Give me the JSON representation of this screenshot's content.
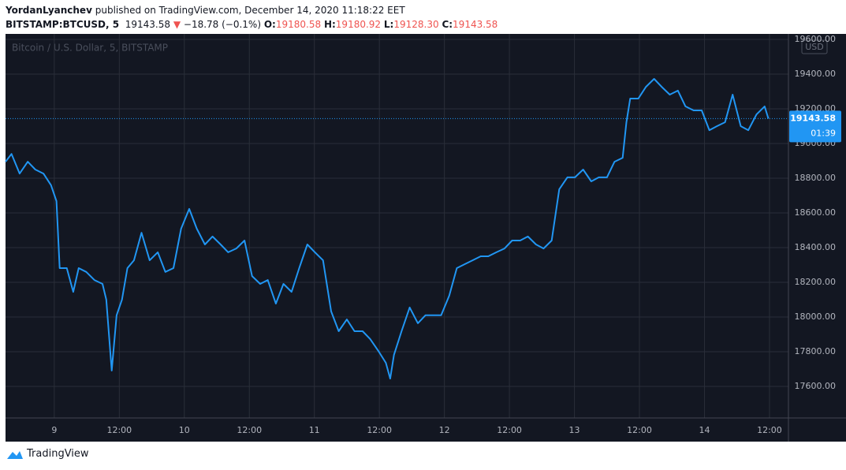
{
  "header": {
    "author": "YordanLyanchev",
    "published": "published on TradingView.com, December 14, 2020 11:18:22 EET",
    "symbol": "BITSTAMP:BTCUSD, 5",
    "last": "19143.58",
    "arrow": "▼",
    "change": "−18.78 (−0.1%)",
    "ohlc": [
      {
        "key": "O:",
        "value": "19180.58"
      },
      {
        "key": "H:",
        "value": "19180.92"
      },
      {
        "key": "L:",
        "value": "19128.30"
      },
      {
        "key": "C:",
        "value": "19143.58"
      }
    ]
  },
  "chart_data": {
    "type": "line",
    "watermark": "Bitcoin / U.S. Dollar, 5, BITSTAMP",
    "currency": "USD",
    "countdown": "01:39",
    "last_price": 19143.58,
    "x": [
      -9.0,
      -7.9,
      -6.4,
      -4.9,
      -3.5,
      -2.0,
      -0.6,
      0.4,
      1.0,
      2.3,
      3.5,
      4.5,
      5.9,
      7.4,
      8.9,
      9.6,
      10.6,
      11.5,
      12.5,
      13.5,
      14.7,
      16.1,
      17.6,
      19.1,
      20.5,
      22.0,
      23.4,
      24.9,
      26.3,
      27.8,
      29.2,
      30.7,
      32.1,
      33.6,
      35.1,
      36.5,
      38.0,
      39.4,
      40.9,
      42.3,
      43.8,
      45.2,
      46.7,
      48.1,
      49.6,
      51.1,
      52.5,
      54.0,
      55.4,
      56.9,
      58.3,
      59.8,
      61.2,
      62.0,
      62.7,
      64.1,
      65.6,
      67.1,
      68.5,
      70.0,
      71.4,
      72.9,
      74.3,
      75.8,
      77.2,
      78.7,
      80.1,
      81.6,
      83.1,
      84.5,
      86.0,
      87.4,
      88.9,
      90.3,
      91.8,
      93.2,
      94.7,
      96.1,
      97.6,
      99.1,
      100.5,
      102.0,
      103.4,
      104.9,
      105.6,
      106.3,
      107.8,
      109.2,
      110.7,
      112.1,
      113.6,
      115.1,
      116.5,
      118.0,
      119.5,
      120.9,
      122.3,
      123.8,
      125.2,
      126.7,
      128.1,
      129.6,
      131.1,
      131.8
    ],
    "series": [
      {
        "name": "BTCUSD",
        "color": "#2196f3",
        "values": [
          18895,
          18940,
          18827,
          18895,
          18850,
          18827,
          18760,
          18668,
          18282,
          18282,
          18145,
          18282,
          18260,
          18213,
          18191,
          18100,
          17691,
          18010,
          18100,
          18282,
          18327,
          18486,
          18327,
          18373,
          18260,
          18282,
          18509,
          18623,
          18509,
          18418,
          18464,
          18418,
          18373,
          18395,
          18441,
          18236,
          18191,
          18213,
          18077,
          18191,
          18145,
          18282,
          18418,
          18373,
          18327,
          18032,
          17918,
          17986,
          17918,
          17918,
          17873,
          17805,
          17736,
          17645,
          17782,
          17918,
          18055,
          17964,
          18010,
          18010,
          18010,
          18123,
          18282,
          18305,
          18327,
          18350,
          18350,
          18373,
          18395,
          18441,
          18441,
          18464,
          18418,
          18395,
          18441,
          18736,
          18805,
          18805,
          18850,
          18782,
          18805,
          18805,
          18895,
          18918,
          19123,
          19259,
          19259,
          19327,
          19373,
          19327,
          19282,
          19305,
          19214,
          19191,
          19191,
          19077,
          19100,
          19123,
          19282,
          19100,
          19077,
          19168,
          19214,
          19143.58
        ]
      }
    ],
    "xlim": [
      -9,
      135.5
    ],
    "xticks": [
      {
        "value": 0,
        "label": "9"
      },
      {
        "value": 12,
        "label": "12:00"
      },
      {
        "value": 24,
        "label": "10"
      },
      {
        "value": 36,
        "label": "12:00"
      },
      {
        "value": 48,
        "label": "11"
      },
      {
        "value": 60,
        "label": "12:00"
      },
      {
        "value": 72,
        "label": "12"
      },
      {
        "value": 84,
        "label": "12:00"
      },
      {
        "value": 96,
        "label": "13"
      },
      {
        "value": 108,
        "label": "12:00"
      },
      {
        "value": 120,
        "label": "14"
      },
      {
        "value": 132,
        "label": "12:00"
      }
    ],
    "ylim": [
      17418,
      19632
    ],
    "yticks": [
      {
        "value": 17600,
        "label": "17600.00"
      },
      {
        "value": 17800,
        "label": "17800.00"
      },
      {
        "value": 18000,
        "label": "18000.00"
      },
      {
        "value": 18200,
        "label": "18200.00"
      },
      {
        "value": 18400,
        "label": "18400.00"
      },
      {
        "value": 18600,
        "label": "18600.00"
      },
      {
        "value": 18800,
        "label": "18800.00"
      },
      {
        "value": 19000,
        "label": "19000.00"
      },
      {
        "value": 19200,
        "label": "19200.00"
      },
      {
        "value": 19400,
        "label": "19400.00"
      },
      {
        "value": 19600,
        "label": "19600.00"
      }
    ],
    "grid": true
  },
  "footer": {
    "brand": "TradingView"
  }
}
